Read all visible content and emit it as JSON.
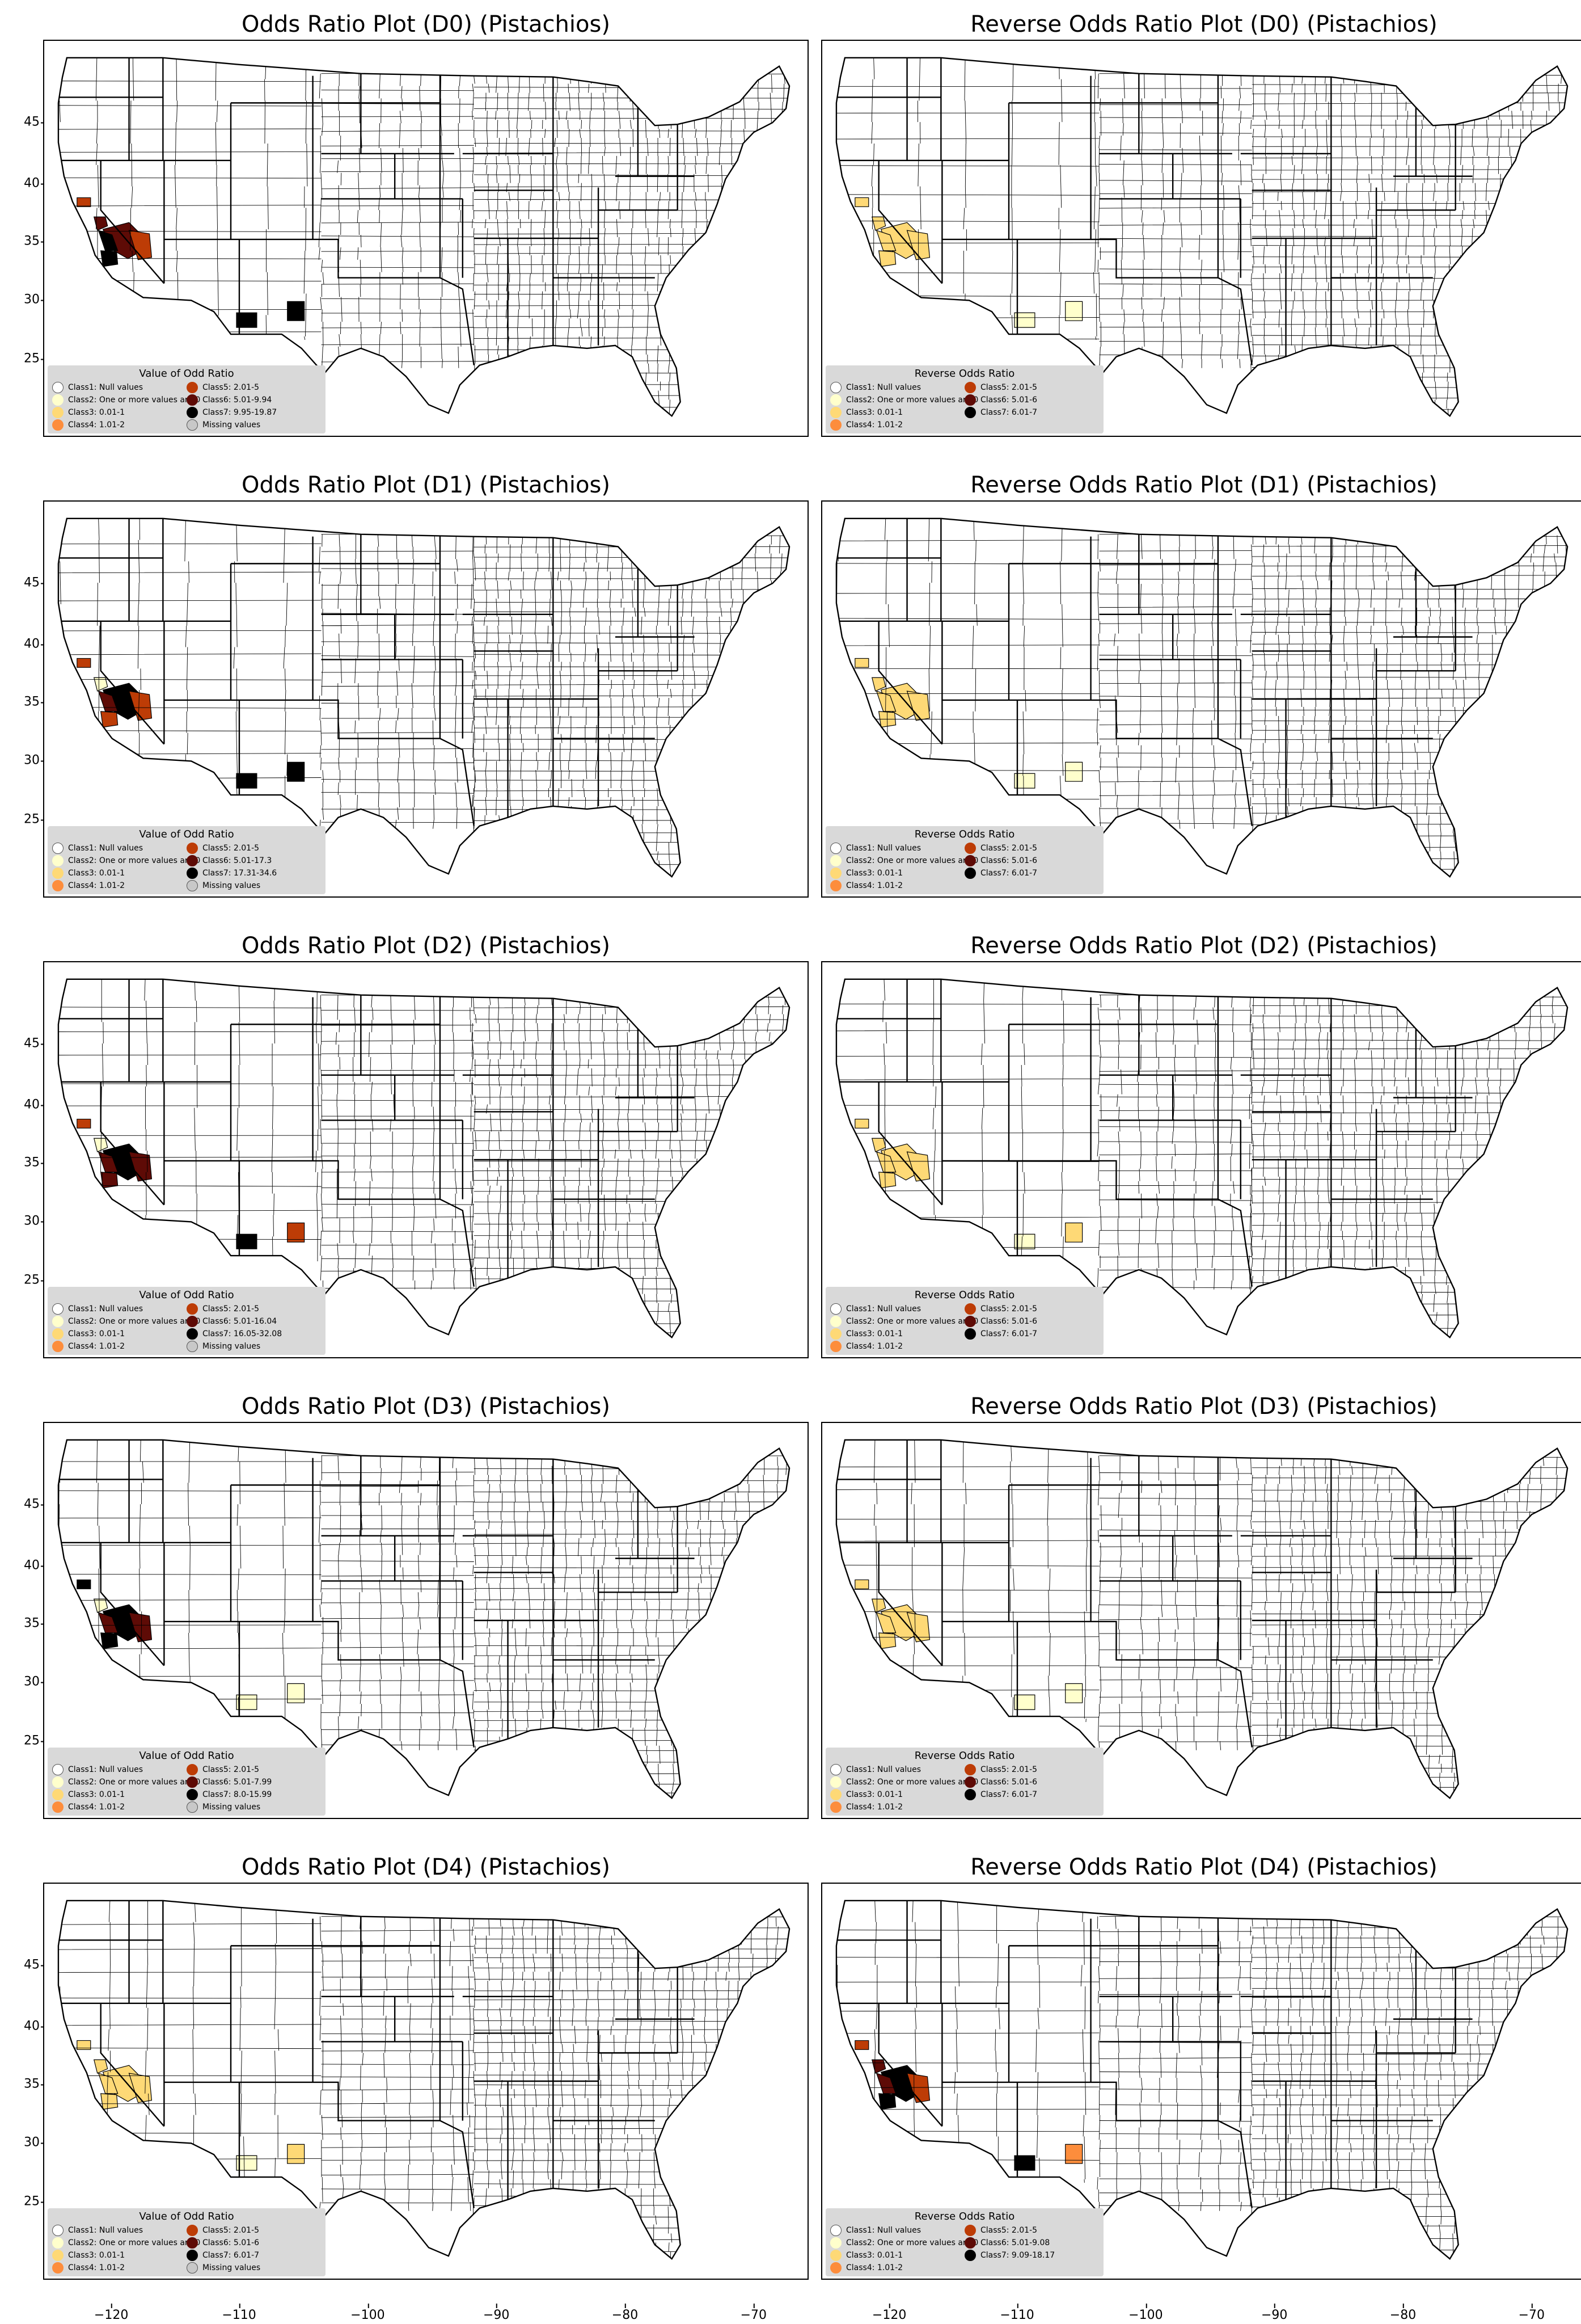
{
  "colors": {
    "class1": "#ffffff",
    "class2": "#ffffcc",
    "class3": "#fed976",
    "class4": "#fd8d3c",
    "class5": "#bd3c06",
    "class6": "#5e0b06",
    "class7": "#000000",
    "missing": "#c8c8c8"
  },
  "xaxis_ticks": [
    "−120",
    "−110",
    "−100",
    "−90",
    "−80",
    "−70"
  ],
  "yaxis_ticks": [
    "45",
    "40",
    "35",
    "30",
    "25"
  ],
  "panels": [
    {
      "title": "Odds Ratio Plot (D0) (Pistachios)",
      "legend_title": "Value of Odd Ratio",
      "legend": [
        "Class1: Null values",
        "Class2: One or more values are 0",
        "Class3: 0.01-1",
        "Class4: 1.01-2",
        "Class5: 2.01-5",
        "Class6: 5.01-9.94",
        "Class7: 9.95-19.87",
        "Missing values"
      ],
      "regions": [
        [
          "nca",
          "class5"
        ],
        [
          "cvn",
          "class6"
        ],
        [
          "cvs",
          "class6"
        ],
        [
          "cve",
          "class5"
        ],
        [
          "cvw",
          "class7"
        ],
        [
          "ccs",
          "class7"
        ],
        [
          "azs",
          "class7"
        ],
        [
          "nms",
          "class7"
        ]
      ]
    },
    {
      "title": "Reverse Odds Ratio Plot (D0) (Pistachios)",
      "legend_title": "Reverse Odds Ratio",
      "legend": [
        "Class1: Null values",
        "Class2: One or more values are 0",
        "Class3: 0.01-1",
        "Class4: 1.01-2",
        "Class5: 2.01-5",
        "Class6: 5.01-6",
        "Class7: 6.01-7"
      ],
      "regions": [
        [
          "nca",
          "class3"
        ],
        [
          "cvn",
          "class3"
        ],
        [
          "cvs",
          "class3"
        ],
        [
          "cve",
          "class3"
        ],
        [
          "cvw",
          "class3"
        ],
        [
          "ccs",
          "class3"
        ],
        [
          "azs",
          "class2"
        ],
        [
          "nms",
          "class2"
        ]
      ]
    },
    {
      "title": "Odds Ratio Plot (D1) (Pistachios)",
      "legend_title": "Value of Odd Ratio",
      "legend": [
        "Class1: Null values",
        "Class2: One or more values are 0",
        "Class3: 0.01-1",
        "Class4: 1.01-2",
        "Class5: 2.01-5",
        "Class6: 5.01-17.3",
        "Class7: 17.31-34.6",
        "Missing values"
      ],
      "regions": [
        [
          "nca",
          "class5"
        ],
        [
          "cvn",
          "class2"
        ],
        [
          "cvs",
          "class7"
        ],
        [
          "cve",
          "class5"
        ],
        [
          "cvw",
          "class6"
        ],
        [
          "ccs",
          "class5"
        ],
        [
          "azs",
          "class7"
        ],
        [
          "nms",
          "class7"
        ]
      ]
    },
    {
      "title": "Reverse Odds Ratio Plot (D1) (Pistachios)",
      "legend_title": "Reverse Odds Ratio",
      "legend": [
        "Class1: Null values",
        "Class2: One or more values are 0",
        "Class3: 0.01-1",
        "Class4: 1.01-2",
        "Class5: 2.01-5",
        "Class6: 5.01-6",
        "Class7: 6.01-7"
      ],
      "regions": [
        [
          "nca",
          "class3"
        ],
        [
          "cvn",
          "class3"
        ],
        [
          "cvs",
          "class3"
        ],
        [
          "cve",
          "class3"
        ],
        [
          "cvw",
          "class3"
        ],
        [
          "ccs",
          "class3"
        ],
        [
          "azs",
          "class2"
        ],
        [
          "nms",
          "class2"
        ]
      ]
    },
    {
      "title": "Odds Ratio Plot (D2) (Pistachios)",
      "legend_title": "Value of Odd Ratio",
      "legend": [
        "Class1: Null values",
        "Class2: One or more values are 0",
        "Class3: 0.01-1",
        "Class4: 1.01-2",
        "Class5: 2.01-5",
        "Class6: 5.01-16.04",
        "Class7: 16.05-32.08",
        "Missing values"
      ],
      "regions": [
        [
          "nca",
          "class5"
        ],
        [
          "cvn",
          "class2"
        ],
        [
          "cvs",
          "class7"
        ],
        [
          "cve",
          "class6"
        ],
        [
          "cvw",
          "class6"
        ],
        [
          "ccs",
          "class6"
        ],
        [
          "azs",
          "class7"
        ],
        [
          "nms",
          "class5"
        ]
      ]
    },
    {
      "title": "Reverse Odds Ratio Plot (D2) (Pistachios)",
      "legend_title": "Reverse Odds Ratio",
      "legend": [
        "Class1: Null values",
        "Class2: One or more values are 0",
        "Class3: 0.01-1",
        "Class4: 1.01-2",
        "Class5: 2.01-5",
        "Class6: 5.01-6",
        "Class7: 6.01-7"
      ],
      "regions": [
        [
          "nca",
          "class3"
        ],
        [
          "cvn",
          "class3"
        ],
        [
          "cvs",
          "class3"
        ],
        [
          "cve",
          "class3"
        ],
        [
          "cvw",
          "class3"
        ],
        [
          "ccs",
          "class3"
        ],
        [
          "azs",
          "class2"
        ],
        [
          "nms",
          "class3"
        ]
      ]
    },
    {
      "title": "Odds Ratio Plot (D3) (Pistachios)",
      "legend_title": "Value of Odd Ratio",
      "legend": [
        "Class1: Null values",
        "Class2: One or more values are 0",
        "Class3: 0.01-1",
        "Class4: 1.01-2",
        "Class5: 2.01-5",
        "Class6: 5.01-7.99",
        "Class7: 8.0-15.99",
        "Missing values"
      ],
      "regions": [
        [
          "nca",
          "class7"
        ],
        [
          "cvn",
          "class2"
        ],
        [
          "cvs",
          "class7"
        ],
        [
          "cve",
          "class6"
        ],
        [
          "cvw",
          "class6"
        ],
        [
          "ccs",
          "class7"
        ],
        [
          "azs",
          "class2"
        ],
        [
          "nms",
          "class2"
        ]
      ]
    },
    {
      "title": "Reverse Odds Ratio Plot (D3) (Pistachios)",
      "legend_title": "Reverse Odds Ratio",
      "legend": [
        "Class1: Null values",
        "Class2: One or more values are 0",
        "Class3: 0.01-1",
        "Class4: 1.01-2",
        "Class5: 2.01-5",
        "Class6: 5.01-6",
        "Class7: 6.01-7"
      ],
      "regions": [
        [
          "nca",
          "class3"
        ],
        [
          "cvn",
          "class3"
        ],
        [
          "cvs",
          "class3"
        ],
        [
          "cve",
          "class3"
        ],
        [
          "cvw",
          "class3"
        ],
        [
          "ccs",
          "class3"
        ],
        [
          "azs",
          "class2"
        ],
        [
          "nms",
          "class2"
        ]
      ]
    },
    {
      "title": "Odds Ratio Plot (D4) (Pistachios)",
      "legend_title": "Value of Odd Ratio",
      "legend": [
        "Class1: Null values",
        "Class2: One or more values are 0",
        "Class3: 0.01-1",
        "Class4: 1.01-2",
        "Class5: 2.01-5",
        "Class6: 5.01-6",
        "Class7: 6.01-7",
        "Missing values"
      ],
      "regions": [
        [
          "nca",
          "class3"
        ],
        [
          "cvn",
          "class3"
        ],
        [
          "cvs",
          "class3"
        ],
        [
          "cve",
          "class3"
        ],
        [
          "cvw",
          "class3"
        ],
        [
          "ccs",
          "class3"
        ],
        [
          "azs",
          "class2"
        ],
        [
          "nms",
          "class3"
        ]
      ]
    },
    {
      "title": "Reverse Odds Ratio Plot (D4) (Pistachios)",
      "legend_title": "Reverse Odds Ratio",
      "legend": [
        "Class1: Null values",
        "Class2: One or more values are 0",
        "Class3: 0.01-1",
        "Class4: 1.01-2",
        "Class5: 2.01-5",
        "Class6: 5.01-9.08",
        "Class7: 9.09-18.17"
      ],
      "regions": [
        [
          "nca",
          "class5"
        ],
        [
          "cvn",
          "class6"
        ],
        [
          "cvs",
          "class7"
        ],
        [
          "cve",
          "class5"
        ],
        [
          "cvw",
          "class6"
        ],
        [
          "ccs",
          "class7"
        ],
        [
          "azs",
          "class7"
        ],
        [
          "nms",
          "class4"
        ]
      ]
    }
  ]
}
